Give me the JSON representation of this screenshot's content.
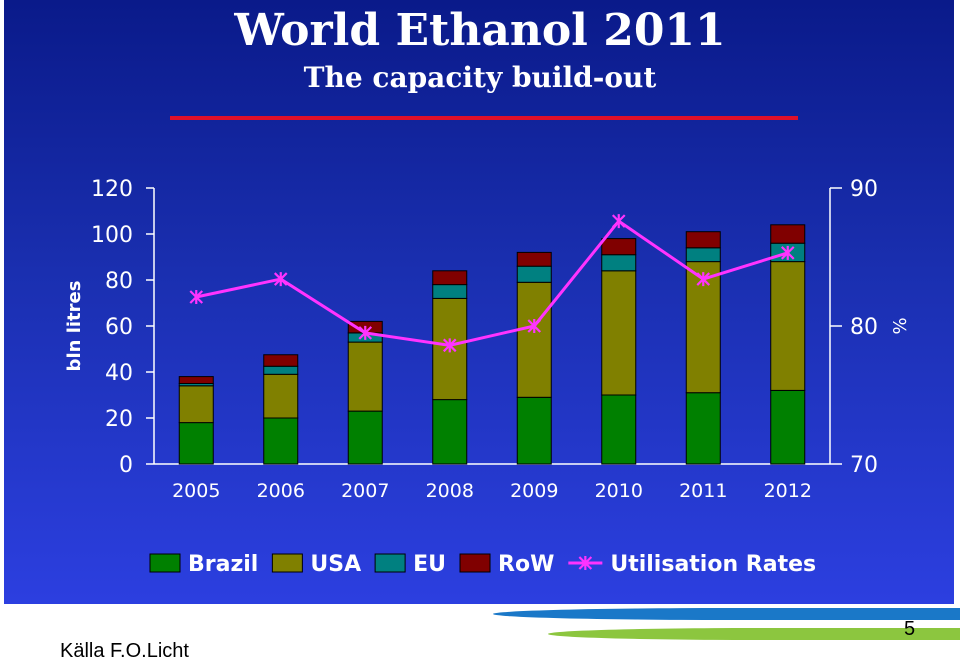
{
  "slide": {
    "title": "World Ethanol 2011",
    "subtitle": "The capacity build-out",
    "source": "Källa F.O.Licht",
    "page_number": "5"
  },
  "colors": {
    "background_top": "#0a1a8a",
    "background_bottom": "#2c3fe0",
    "title_underline": "#e0102a",
    "brazil": "#008000",
    "usa": "#808000",
    "eu": "#008080",
    "row": "#800000",
    "utilisation": "#ff33ff"
  },
  "chart_data": {
    "type": "bar",
    "stacked": true,
    "categories": [
      "2005",
      "2006",
      "2007",
      "2008",
      "2009",
      "2010",
      "2011",
      "2012"
    ],
    "ylabel": "bln litres",
    "ylim": [
      0,
      120
    ],
    "yticks": [
      "0",
      "20",
      "40",
      "60",
      "80",
      "100",
      "120"
    ],
    "y2label": "%",
    "y2lim": [
      70,
      90
    ],
    "y2ticks": [
      "70",
      "80",
      "90"
    ],
    "series": [
      {
        "name": "Brazil",
        "type": "bar",
        "color": "#008000",
        "values": [
          18,
          20,
          23,
          28,
          29,
          30,
          31,
          32
        ]
      },
      {
        "name": "USA",
        "type": "bar",
        "color": "#808000",
        "values": [
          16,
          19,
          30,
          44,
          50,
          54,
          57,
          56
        ]
      },
      {
        "name": "EU",
        "type": "bar",
        "color": "#008080",
        "values": [
          1,
          3.5,
          4,
          6,
          7,
          7,
          6,
          8
        ]
      },
      {
        "name": "RoW",
        "type": "bar",
        "color": "#800000",
        "values": [
          3,
          5,
          5,
          6,
          6,
          7,
          7,
          8
        ]
      },
      {
        "name": "Utilisation Rates",
        "type": "line",
        "axis": "right",
        "color": "#ff33ff",
        "values": [
          82.1,
          83.4,
          79.5,
          78.6,
          80,
          87.6,
          83.4,
          85.3
        ]
      }
    ],
    "legend_position": "bottom",
    "grid": false
  }
}
